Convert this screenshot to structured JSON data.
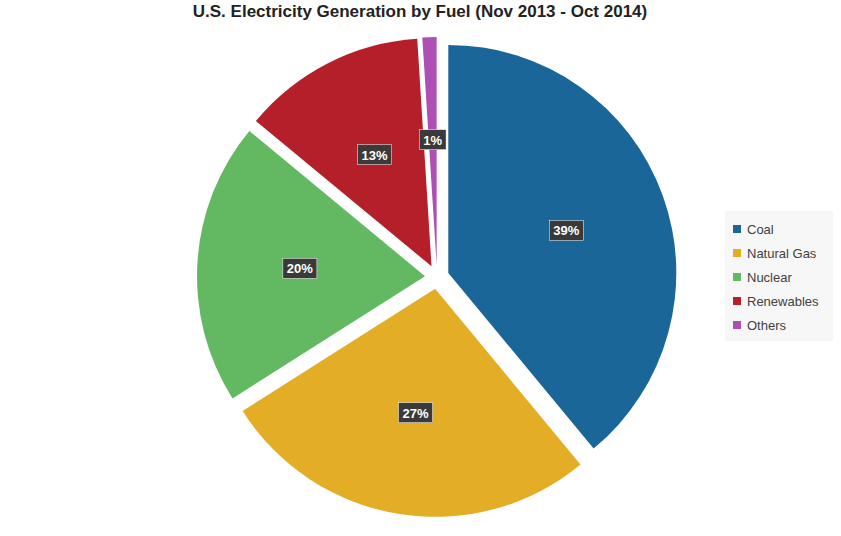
{
  "chart_data": {
    "type": "pie",
    "title": "U.S. Electricity  Generation  by Fuel (Nov 2013 - Oct 2014)",
    "categories": [
      "Coal",
      "Natural Gas",
      "Nuclear",
      "Renewables",
      "Others"
    ],
    "values": [
      39,
      27,
      20,
      13,
      1
    ],
    "value_labels": [
      "39%",
      "27%",
      "20%",
      "13%",
      "1%"
    ],
    "colors": [
      "#1b6699",
      "#e3ad25",
      "#63b862",
      "#b51f29",
      "#ad4fb5"
    ],
    "data_labels": true,
    "legend": "right"
  }
}
